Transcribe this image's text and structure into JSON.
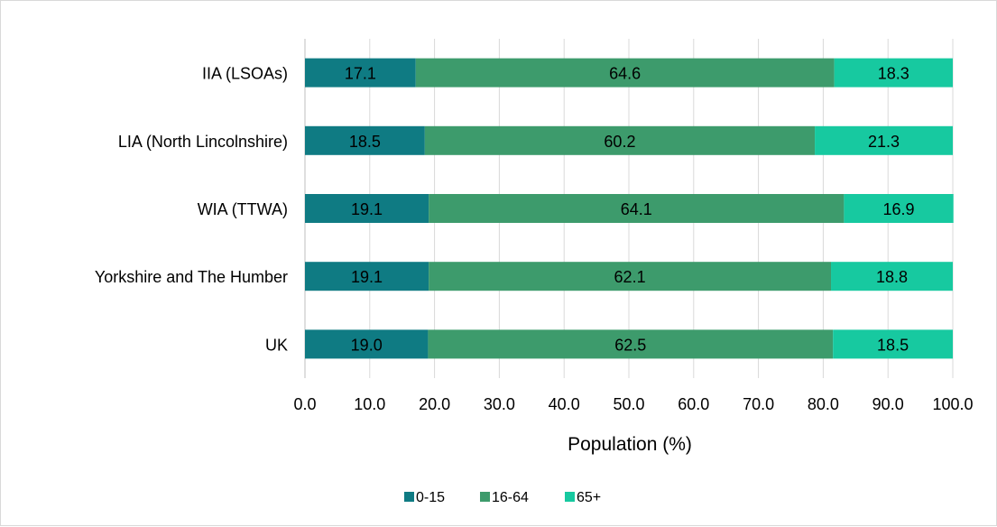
{
  "chart_data": {
    "type": "bar",
    "orientation": "horizontal",
    "stacked": true,
    "categories": [
      "IIA (LSOAs)",
      "LIA (North Lincolnshire)",
      "WIA  (TTWA)",
      "Yorkshire and The Humber",
      "UK"
    ],
    "series": [
      {
        "name": "0-15",
        "color": "#0f7b83",
        "values": [
          17.1,
          18.5,
          19.1,
          19.1,
          19.0
        ]
      },
      {
        "name": "16-64",
        "color": "#3d9b6c",
        "values": [
          64.6,
          60.2,
          64.1,
          62.1,
          62.5
        ]
      },
      {
        "name": "65+",
        "color": "#17c9a0",
        "values": [
          18.3,
          21.3,
          16.9,
          18.8,
          18.5
        ]
      }
    ],
    "data_labels": [
      [
        "17.1",
        "18.5",
        "19.1",
        "19.1",
        "19.0"
      ],
      [
        "64.6",
        "60.2",
        "64.1",
        "62.1",
        "62.5"
      ],
      [
        "18.3",
        "21.3",
        "16.9",
        "18.8",
        "18.5"
      ]
    ],
    "xlabel": "Population (%)",
    "ylabel": "",
    "xlim": [
      0,
      100
    ],
    "xticks": [
      "0.0",
      "10.0",
      "20.0",
      "30.0",
      "40.0",
      "50.0",
      "60.0",
      "70.0",
      "80.0",
      "90.0",
      "100.0"
    ],
    "grid": true,
    "legend_position": "bottom"
  }
}
